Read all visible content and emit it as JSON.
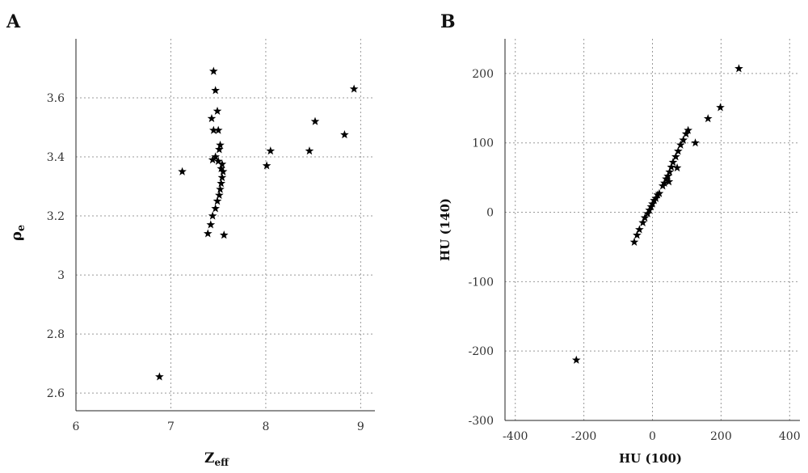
{
  "chart_data": [
    {
      "panel": "A",
      "type": "scatter",
      "xlabel": "Z",
      "xlabel_sub": "eff",
      "ylabel": "ρ",
      "ylabel_sub": "e",
      "xlim": [
        6,
        9.15
      ],
      "ylim": [
        2.54,
        3.8
      ],
      "xticks": [
        6,
        7,
        8,
        9
      ],
      "yticks": [
        2.6,
        2.8,
        3,
        3.2,
        3.4,
        3.6
      ],
      "ytick_labels": [
        "2.6",
        "2.8",
        "3",
        "3.2",
        "3.4",
        "3.6"
      ],
      "grid": true,
      "marker": "star",
      "points": [
        {
          "x": 7.45,
          "y": 3.69
        },
        {
          "x": 7.47,
          "y": 3.625
        },
        {
          "x": 7.49,
          "y": 3.555
        },
        {
          "x": 7.43,
          "y": 3.53
        },
        {
          "x": 7.45,
          "y": 3.49
        },
        {
          "x": 7.5,
          "y": 3.49
        },
        {
          "x": 7.52,
          "y": 3.44
        },
        {
          "x": 7.51,
          "y": 3.425
        },
        {
          "x": 7.47,
          "y": 3.4
        },
        {
          "x": 7.44,
          "y": 3.39
        },
        {
          "x": 7.5,
          "y": 3.385
        },
        {
          "x": 7.54,
          "y": 3.375
        },
        {
          "x": 7.53,
          "y": 3.36
        },
        {
          "x": 7.55,
          "y": 3.35
        },
        {
          "x": 7.54,
          "y": 3.33
        },
        {
          "x": 7.53,
          "y": 3.31
        },
        {
          "x": 7.52,
          "y": 3.29
        },
        {
          "x": 7.51,
          "y": 3.27
        },
        {
          "x": 7.49,
          "y": 3.25
        },
        {
          "x": 7.47,
          "y": 3.225
        },
        {
          "x": 7.44,
          "y": 3.2
        },
        {
          "x": 7.42,
          "y": 3.17
        },
        {
          "x": 7.39,
          "y": 3.14
        },
        {
          "x": 7.56,
          "y": 3.135
        },
        {
          "x": 7.12,
          "y": 3.35
        },
        {
          "x": 6.88,
          "y": 2.655
        },
        {
          "x": 8.01,
          "y": 3.37
        },
        {
          "x": 8.05,
          "y": 3.42
        },
        {
          "x": 8.46,
          "y": 3.42
        },
        {
          "x": 8.52,
          "y": 3.52
        },
        {
          "x": 8.83,
          "y": 3.475
        },
        {
          "x": 8.93,
          "y": 3.63
        }
      ]
    },
    {
      "panel": "B",
      "type": "scatter",
      "xlabel": "HU (100)",
      "ylabel": "HU (140)",
      "xlim": [
        -430,
        430
      ],
      "ylim": [
        -300,
        250
      ],
      "xticks": [
        -400,
        -200,
        0,
        200,
        400
      ],
      "yticks": [
        -300,
        -200,
        -100,
        0,
        100,
        200
      ],
      "grid": true,
      "marker": "star",
      "points": [
        {
          "x": -222,
          "y": -213
        },
        {
          "x": -53,
          "y": -43
        },
        {
          "x": -45,
          "y": -33
        },
        {
          "x": -38,
          "y": -25
        },
        {
          "x": -28,
          "y": -15
        },
        {
          "x": -22,
          "y": -8
        },
        {
          "x": -14,
          "y": -2
        },
        {
          "x": -9,
          "y": 3
        },
        {
          "x": -4,
          "y": 8
        },
        {
          "x": 0,
          "y": 12
        },
        {
          "x": 5,
          "y": 17
        },
        {
          "x": 10,
          "y": 20
        },
        {
          "x": 15,
          "y": 25
        },
        {
          "x": 20,
          "y": 27
        },
        {
          "x": 30,
          "y": 38
        },
        {
          "x": 35,
          "y": 42
        },
        {
          "x": 40,
          "y": 48
        },
        {
          "x": 45,
          "y": 52
        },
        {
          "x": 50,
          "y": 58
        },
        {
          "x": 55,
          "y": 65
        },
        {
          "x": 48,
          "y": 44
        },
        {
          "x": 60,
          "y": 72
        },
        {
          "x": 68,
          "y": 80
        },
        {
          "x": 75,
          "y": 88
        },
        {
          "x": 72,
          "y": 64
        },
        {
          "x": 82,
          "y": 97
        },
        {
          "x": 90,
          "y": 104
        },
        {
          "x": 98,
          "y": 113
        },
        {
          "x": 104,
          "y": 118
        },
        {
          "x": 125,
          "y": 100
        },
        {
          "x": 162,
          "y": 135
        },
        {
          "x": 198,
          "y": 151
        },
        {
          "x": 252,
          "y": 207
        }
      ]
    }
  ]
}
